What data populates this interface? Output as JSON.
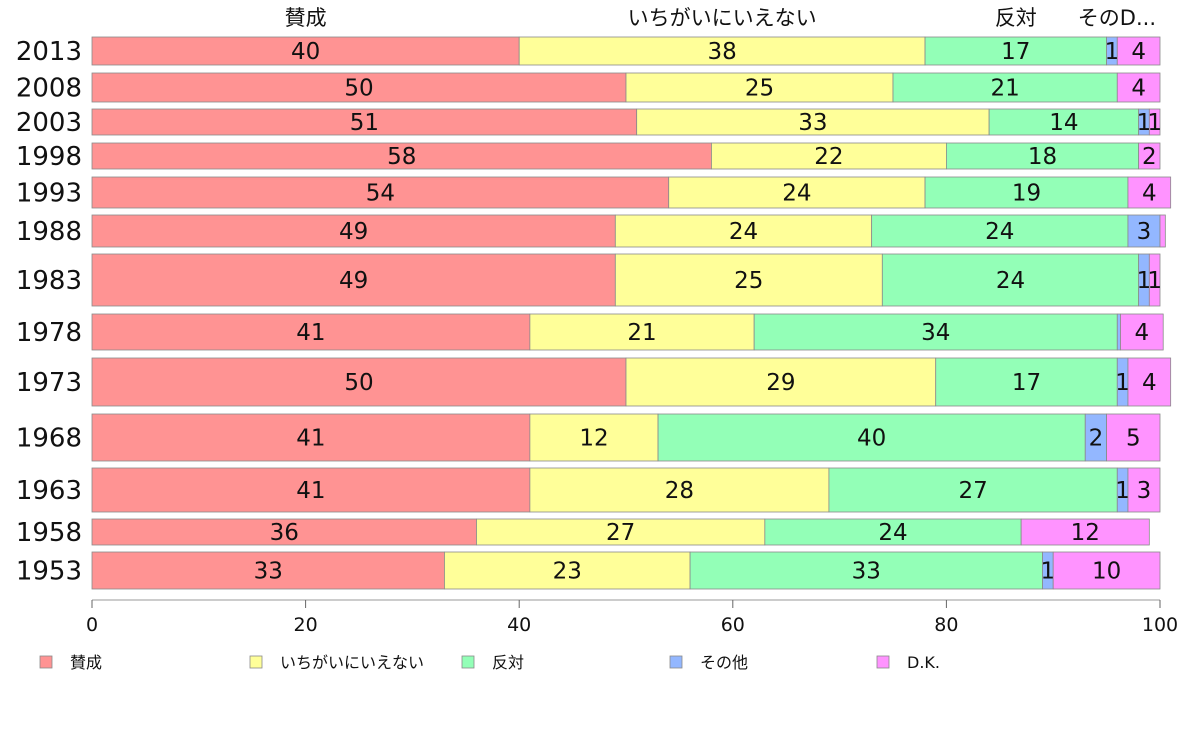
{
  "chart_data": {
    "type": "bar",
    "orientation": "horizontal",
    "stacked": true,
    "categories": [
      "2013",
      "2008",
      "2003",
      "1998",
      "1993",
      "1988",
      "1983",
      "1978",
      "1973",
      "1968",
      "1963",
      "1958",
      "1953"
    ],
    "series": [
      {
        "name": "賛成",
        "color": "#ff9393",
        "values": [
          40,
          50,
          51,
          58,
          54,
          49,
          49,
          41,
          50,
          41,
          41,
          36,
          33
        ]
      },
      {
        "name": "いちがいにいえない",
        "color": "#ffff99",
        "values": [
          38,
          25,
          33,
          22,
          24,
          24,
          25,
          21,
          29,
          12,
          28,
          27,
          23
        ]
      },
      {
        "name": "反対",
        "color": "#93ffb7",
        "values": [
          17,
          21,
          14,
          18,
          19,
          24,
          24,
          34,
          17,
          40,
          27,
          24,
          33
        ]
      },
      {
        "name": "その他",
        "color": "#93b7ff",
        "values": [
          1,
          0,
          1,
          0,
          0,
          3,
          1,
          0.3,
          1,
          2,
          1,
          0,
          1
        ]
      },
      {
        "name": "D.K.",
        "color": "#ff93ff",
        "values": [
          4,
          4,
          1,
          2,
          4,
          0.5,
          1,
          4,
          4,
          5,
          3,
          12,
          10
        ]
      }
    ],
    "top_labels": [
      "賛成",
      "いちがいにいえない",
      "反対",
      "そのD..."
    ],
    "xlim": [
      0,
      100
    ],
    "xticks": [
      0,
      20,
      40,
      60,
      80,
      100
    ],
    "grid": false,
    "legend_position": "bottom"
  }
}
